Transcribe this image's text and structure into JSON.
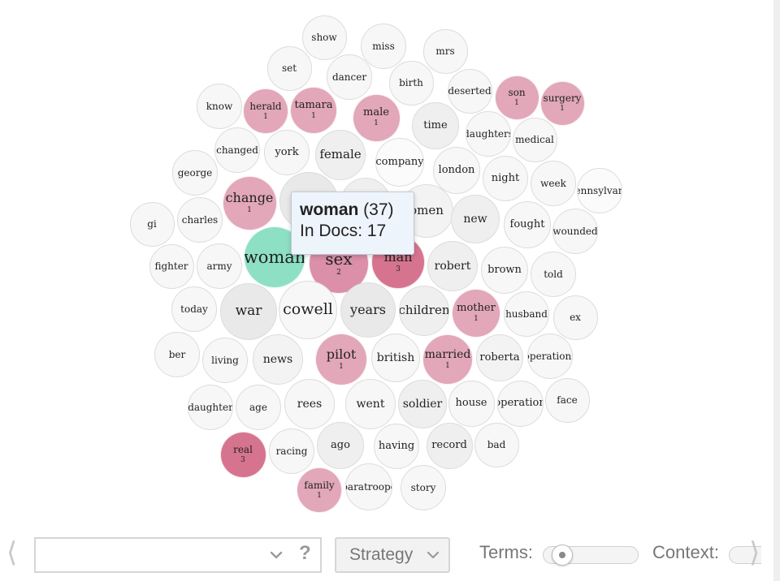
{
  "bubbles": [
    {
      "term": "show",
      "count": "",
      "color": "#f7f7f7"
    },
    {
      "term": "miss",
      "count": "",
      "color": "#f7f7f7"
    },
    {
      "term": "mrs",
      "count": "",
      "color": "#f7f7f7"
    },
    {
      "term": "set",
      "count": "",
      "color": "#f7f7f7"
    },
    {
      "term": "dancer",
      "count": "",
      "color": "#f7f7f7"
    },
    {
      "term": "birth",
      "count": "",
      "color": "#f7f7f7"
    },
    {
      "term": "know",
      "count": "",
      "color": "#f7f7f7"
    },
    {
      "term": "herald",
      "count": "1",
      "color": "#e2a7b9"
    },
    {
      "term": "tamara",
      "count": "1",
      "color": "#e2a7b9"
    },
    {
      "term": "male",
      "count": "1",
      "color": "#e2a7b9"
    },
    {
      "term": "deserted",
      "count": "",
      "color": "#f7f7f7"
    },
    {
      "term": "son",
      "count": "1",
      "color": "#e2a7b9"
    },
    {
      "term": "surgery",
      "count": "1",
      "color": "#e2a7b9"
    },
    {
      "term": "time",
      "count": "",
      "color": "#efefef"
    },
    {
      "term": "changed",
      "count": "",
      "color": "#f7f7f7"
    },
    {
      "term": "york",
      "count": "",
      "color": "#f7f7f7"
    },
    {
      "term": "female",
      "count": "",
      "color": "#efefef"
    },
    {
      "term": "daughters",
      "count": "",
      "color": "#f7f7f7"
    },
    {
      "term": "medical",
      "count": "",
      "color": "#f7f7f7"
    },
    {
      "term": "george",
      "count": "",
      "color": "#f7f7f7"
    },
    {
      "term": "company",
      "count": "",
      "color": "#fbfbfb"
    },
    {
      "term": "london",
      "count": "",
      "color": "#f7f7f7"
    },
    {
      "term": "night",
      "count": "",
      "color": "#f7f7f7"
    },
    {
      "term": "week",
      "count": "",
      "color": "#f7f7f7"
    },
    {
      "term": "ennsylvan",
      "count": "",
      "color": "#fbfbfb"
    },
    {
      "term": "change",
      "count": "1",
      "color": "#e2a7b9"
    },
    {
      "term": "",
      "count": "",
      "color": "#e9e9e9"
    },
    {
      "term": "",
      "count": "",
      "color": "#efefef"
    },
    {
      "term": "omen",
      "count": "",
      "color": "#f3f3f3"
    },
    {
      "term": "new",
      "count": "",
      "color": "#efefef"
    },
    {
      "term": "fought",
      "count": "",
      "color": "#f7f7f7"
    },
    {
      "term": "wounded",
      "count": "",
      "color": "#f7f7f7"
    },
    {
      "term": "gi",
      "count": "",
      "color": "#f7f7f7"
    },
    {
      "term": "charles",
      "count": "",
      "color": "#f7f7f7"
    },
    {
      "term": "fighter",
      "count": "",
      "color": "#f7f7f7"
    },
    {
      "term": "army",
      "count": "",
      "color": "#f7f7f7"
    },
    {
      "term": "woman",
      "count": "",
      "color": "#8ee0c4"
    },
    {
      "term": "sex",
      "count": "2",
      "color": "#db8fa8"
    },
    {
      "term": "man",
      "count": "3",
      "color": "#d6748f"
    },
    {
      "term": "robert",
      "count": "",
      "color": "#efefef"
    },
    {
      "term": "brown",
      "count": "",
      "color": "#f7f7f7"
    },
    {
      "term": "told",
      "count": "",
      "color": "#f7f7f7"
    },
    {
      "term": "today",
      "count": "",
      "color": "#f7f7f7"
    },
    {
      "term": "war",
      "count": "",
      "color": "#e9e9e9"
    },
    {
      "term": "cowell",
      "count": "",
      "color": "#f7f7f7"
    },
    {
      "term": "years",
      "count": "",
      "color": "#e9e9e9"
    },
    {
      "term": "children",
      "count": "",
      "color": "#efefef"
    },
    {
      "term": "mother",
      "count": "1",
      "color": "#e2a7b9"
    },
    {
      "term": "husband",
      "count": "",
      "color": "#f7f7f7"
    },
    {
      "term": "ex",
      "count": "",
      "color": "#f7f7f7"
    },
    {
      "term": "ber",
      "count": "",
      "color": "#f7f7f7"
    },
    {
      "term": "living",
      "count": "",
      "color": "#f7f7f7"
    },
    {
      "term": "news",
      "count": "",
      "color": "#f3f3f3"
    },
    {
      "term": "pilot",
      "count": "1",
      "color": "#e2a7b9"
    },
    {
      "term": "british",
      "count": "",
      "color": "#f7f7f7"
    },
    {
      "term": "married",
      "count": "1",
      "color": "#e2a7b9"
    },
    {
      "term": "roberta",
      "count": "",
      "color": "#f3f3f3"
    },
    {
      "term": "operations",
      "count": "",
      "color": "#f7f7f7"
    },
    {
      "term": "daughter",
      "count": "",
      "color": "#f7f7f7"
    },
    {
      "term": "age",
      "count": "",
      "color": "#f7f7f7"
    },
    {
      "term": "rees",
      "count": "",
      "color": "#f7f7f7"
    },
    {
      "term": "went",
      "count": "",
      "color": "#f7f7f7"
    },
    {
      "term": "soldier",
      "count": "",
      "color": "#efefef"
    },
    {
      "term": "house",
      "count": "",
      "color": "#f7f7f7"
    },
    {
      "term": "operation",
      "count": "",
      "color": "#f7f7f7"
    },
    {
      "term": "face",
      "count": "",
      "color": "#f7f7f7"
    },
    {
      "term": "real",
      "count": "3",
      "color": "#d6748f"
    },
    {
      "term": "racing",
      "count": "",
      "color": "#f7f7f7"
    },
    {
      "term": "ago",
      "count": "",
      "color": "#efefef"
    },
    {
      "term": "having",
      "count": "",
      "color": "#f7f7f7"
    },
    {
      "term": "record",
      "count": "",
      "color": "#efefef"
    },
    {
      "term": "bad",
      "count": "",
      "color": "#f7f7f7"
    },
    {
      "term": "family",
      "count": "1",
      "color": "#e2a7b9"
    },
    {
      "term": "paratroope",
      "count": "",
      "color": "#f7f7f7"
    },
    {
      "term": "story",
      "count": "",
      "color": "#f7f7f7"
    }
  ],
  "tooltip": {
    "term": "woman",
    "count_text": " (37)",
    "docs_text": "In Docs: 17"
  },
  "toolbar": {
    "prev_glyph": "⟨",
    "next_glyph": "⟩",
    "search_value": "",
    "search_placeholder": "",
    "help_text": "?",
    "strategy_label": "Strategy",
    "terms_label": "Terms:",
    "context_label": "Context:",
    "terms_slider_value": 0.05
  }
}
